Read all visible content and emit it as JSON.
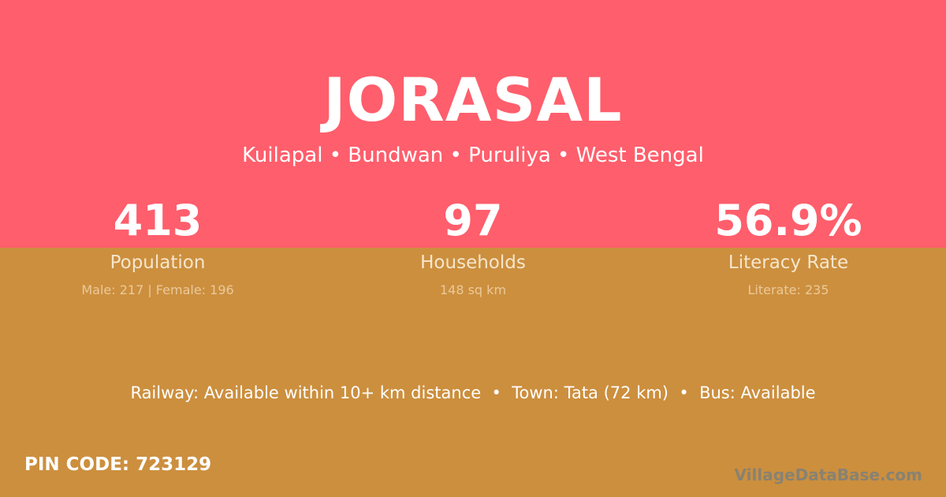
{
  "village": "JORASAL",
  "location": "Kuilapal • Bundwan • Puruliya • West Bengal",
  "stats": [
    {
      "value": "413",
      "label": "Population",
      "detail": "Male: 217 | Female: 196"
    },
    {
      "value": "97",
      "label": "Households",
      "detail": "148 sq km"
    },
    {
      "value": "56.9%",
      "label": "Literacy Rate",
      "detail": "Literate: 235"
    }
  ],
  "access": "Railway: Available within 10+ km distance  •  Town: Tata (72 km)  •  Bus: Available",
  "pin": "PIN CODE: 723129",
  "watermark": "VillageDataBase.com",
  "colors": {
    "top": "#FF5E6C",
    "bottom": "#CC8F3E"
  }
}
